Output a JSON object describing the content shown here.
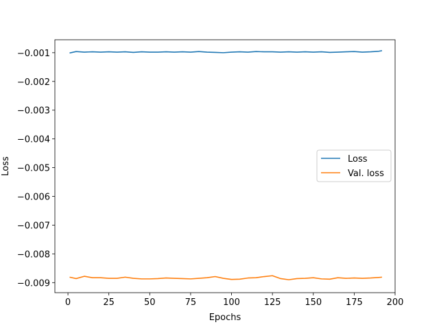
{
  "chart_data": {
    "type": "line",
    "title": "",
    "xlabel": "Epochs",
    "ylabel": "Loss",
    "xlim": [
      -8,
      200
    ],
    "ylim": [
      -0.00935,
      -0.00055
    ],
    "xticks": [
      0,
      25,
      50,
      75,
      100,
      125,
      150,
      175,
      200
    ],
    "xtick_labels": [
      "0",
      "25",
      "50",
      "75",
      "100",
      "125",
      "150",
      "175",
      "200"
    ],
    "yticks": [
      -0.001,
      -0.002,
      -0.003,
      -0.004,
      -0.005,
      -0.006,
      -0.007,
      -0.008,
      -0.009
    ],
    "ytick_labels": [
      "−0.001",
      "−0.002",
      "−0.003",
      "−0.004",
      "−0.005",
      "−0.006",
      "−0.007",
      "−0.008",
      "−0.009"
    ],
    "grid": false,
    "legend_position": "center-right",
    "series": [
      {
        "name": "Loss",
        "color": "#1f77b4",
        "x": [
          1,
          5,
          10,
          15,
          20,
          25,
          30,
          35,
          40,
          45,
          50,
          55,
          60,
          65,
          70,
          75,
          80,
          85,
          90,
          95,
          100,
          105,
          110,
          115,
          120,
          125,
          130,
          135,
          140,
          145,
          150,
          155,
          160,
          165,
          170,
          175,
          180,
          185,
          190,
          192
        ],
        "y": [
          -0.00101,
          -0.00096,
          -0.00098,
          -0.00097,
          -0.00098,
          -0.00097,
          -0.00098,
          -0.00097,
          -0.00099,
          -0.00097,
          -0.00098,
          -0.00098,
          -0.00097,
          -0.00098,
          -0.00097,
          -0.00098,
          -0.00096,
          -0.00098,
          -0.00099,
          -0.001,
          -0.00098,
          -0.00097,
          -0.00098,
          -0.00096,
          -0.00097,
          -0.00097,
          -0.00098,
          -0.00097,
          -0.00098,
          -0.00097,
          -0.00098,
          -0.00097,
          -0.00099,
          -0.00098,
          -0.00097,
          -0.00096,
          -0.00098,
          -0.00097,
          -0.00095,
          -0.00093
        ]
      },
      {
        "name": "Val. loss",
        "color": "#ff7f0e",
        "x": [
          1,
          5,
          10,
          15,
          20,
          25,
          30,
          35,
          40,
          45,
          50,
          55,
          60,
          65,
          70,
          75,
          80,
          85,
          90,
          95,
          100,
          105,
          110,
          115,
          120,
          125,
          130,
          135,
          140,
          145,
          150,
          155,
          160,
          165,
          170,
          175,
          180,
          185,
          190,
          192
        ],
        "y": [
          -0.00881,
          -0.00886,
          -0.00878,
          -0.00883,
          -0.00883,
          -0.00885,
          -0.00885,
          -0.00881,
          -0.00885,
          -0.00887,
          -0.00887,
          -0.00886,
          -0.00884,
          -0.00885,
          -0.00886,
          -0.00887,
          -0.00885,
          -0.00883,
          -0.00879,
          -0.00885,
          -0.00889,
          -0.00888,
          -0.00884,
          -0.00883,
          -0.00879,
          -0.00876,
          -0.00886,
          -0.0089,
          -0.00886,
          -0.00885,
          -0.00883,
          -0.00887,
          -0.00888,
          -0.00883,
          -0.00885,
          -0.00884,
          -0.00885,
          -0.00884,
          -0.00882,
          -0.00881
        ]
      }
    ]
  }
}
